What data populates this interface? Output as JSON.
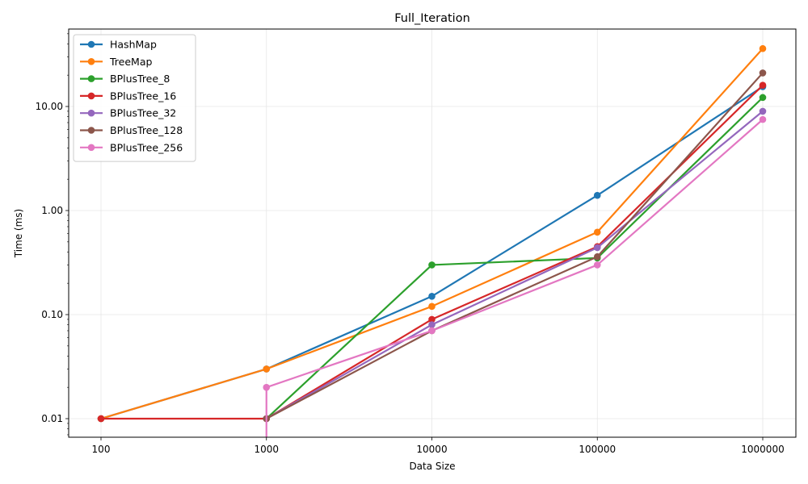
{
  "chart_data": {
    "type": "line",
    "title": "Full_Iteration",
    "xlabel": "Data Size",
    "ylabel": "Time (ms)",
    "x_scale": "log",
    "y_scale": "log",
    "x": [
      100,
      1000,
      10000,
      100000,
      1000000
    ],
    "x_tick_labels": [
      "100",
      "1000",
      "10000",
      "100000",
      "1000000"
    ],
    "y_ticks": [
      0.01,
      0.1,
      1,
      10
    ],
    "y_tick_labels": [
      "0.01",
      "0.10",
      "1.00",
      "10.00"
    ],
    "grid": true,
    "legend_position": "top-left",
    "series": [
      {
        "name": "HashMap",
        "color": "#1f77b4",
        "values": [
          0.01,
          0.03,
          0.15,
          1.4,
          15.5
        ]
      },
      {
        "name": "TreeMap",
        "color": "#ff7f0e",
        "values": [
          0.01,
          0.03,
          0.12,
          0.62,
          36
        ]
      },
      {
        "name": "BPlusTree_8",
        "color": "#2ca02c",
        "values": [
          null,
          0.01,
          0.3,
          0.35,
          12.2
        ]
      },
      {
        "name": "BPlusTree_16",
        "color": "#d62728",
        "values": [
          0.01,
          0.01,
          0.09,
          0.45,
          16
        ]
      },
      {
        "name": "BPlusTree_32",
        "color": "#9467bd",
        "values": [
          null,
          0.01,
          0.08,
          0.44,
          9
        ]
      },
      {
        "name": "BPlusTree_128",
        "color": "#8c564b",
        "values": [
          null,
          0.01,
          0.07,
          0.36,
          21
        ]
      },
      {
        "name": "BPlusTree_256",
        "color": "#e377c2",
        "values": [
          null,
          0.02,
          0.07,
          0.3,
          7.5
        ],
        "drop_to_zero_at_start": true
      }
    ]
  }
}
